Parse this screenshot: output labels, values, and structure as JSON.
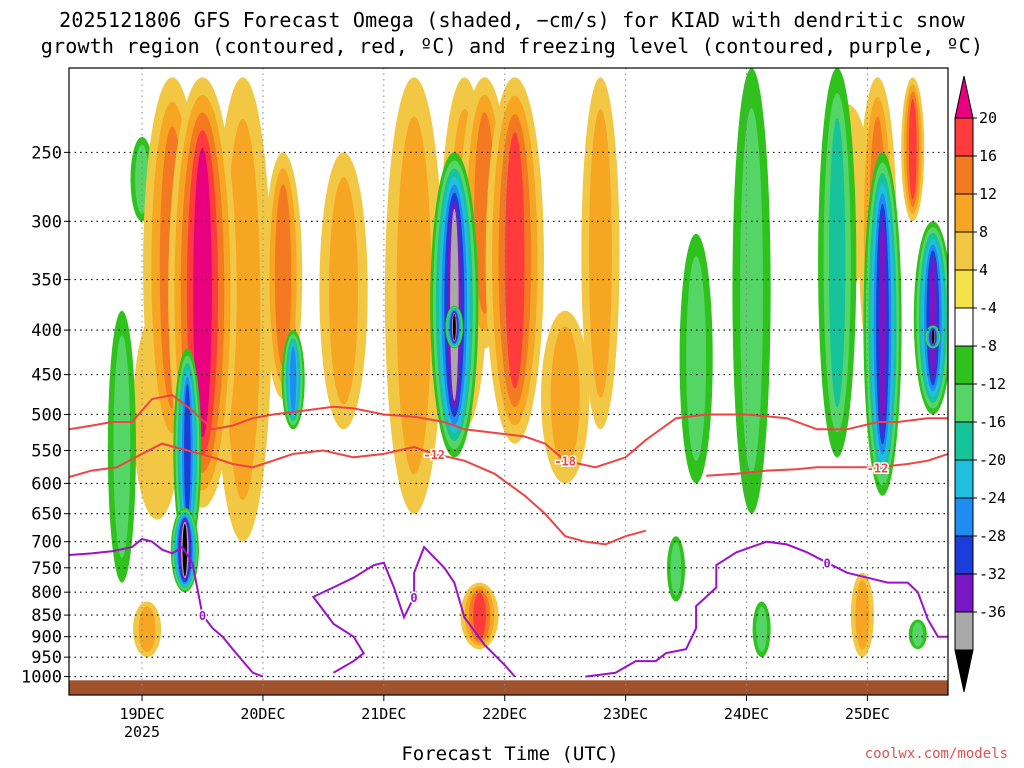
{
  "title": {
    "line1": "2025121806 GFS Forecast Omega (shaded, −cm/s) for KIAD with dendritic snow",
    "line2": "growth region (contoured, red, ºC) and freezing level (contoured, purple, ºC)"
  },
  "attribution": "coolwx.com/models",
  "chart_data": {
    "type": "heatmap",
    "title": "2025121806 GFS Forecast Omega (shaded, −cm/s) for KIAD with dendritic snow growth region (contoured, red, ºC) and freezing level (contoured, purple, ºC)",
    "xlabel": "Forecast Time (UTC)",
    "ylabel": "",
    "x_range_hours": [
      -14.5,
      160
    ],
    "x_ticks": [
      {
        "hour": 0,
        "label": "19DEC",
        "sublabel": "2025"
      },
      {
        "hour": 24,
        "label": "20DEC"
      },
      {
        "hour": 48,
        "label": "21DEC"
      },
      {
        "hour": 72,
        "label": "22DEC"
      },
      {
        "hour": 96,
        "label": "23DEC"
      },
      {
        "hour": 120,
        "label": "24DEC"
      },
      {
        "hour": 144,
        "label": "25DEC"
      }
    ],
    "y_range_hpa": [
      1050,
      200
    ],
    "y_ticks": [
      250,
      300,
      350,
      400,
      450,
      500,
      550,
      600,
      650,
      700,
      750,
      800,
      850,
      900,
      950,
      1000
    ],
    "colorbar": {
      "labels": [
        20,
        16,
        12,
        8,
        4,
        -4,
        -8,
        -12,
        -16,
        -20,
        -24,
        -28,
        -32,
        -36
      ],
      "colors": [
        "#e8007f",
        "#ff3b3b",
        "#f47a22",
        "#f6a623",
        "#f2c744",
        "#f3e24a",
        "#ffffff",
        "#2fc21d",
        "#55d566",
        "#17c39b",
        "#20bfe0",
        "#1e8cf0",
        "#1a3ddb",
        "#7a17c4",
        "#a014d6",
        "#a9a9a9",
        "#000000"
      ]
    },
    "series": [
      {
        "name": "Omega maxima (-cm/s)",
        "cells": [
          {
            "hour": 12,
            "p_top": 205,
            "p_bot": 640,
            "width": 12,
            "value": 22
          },
          {
            "hour": 6,
            "p_top": 205,
            "p_bot": 560,
            "width": 10,
            "value": 12
          },
          {
            "hour": 3,
            "p_top": 380,
            "p_bot": 660,
            "width": 8,
            "value": 6
          },
          {
            "hour": 20,
            "p_top": 205,
            "p_bot": 700,
            "width": 10,
            "value": 8
          },
          {
            "hour": 28,
            "p_top": 250,
            "p_bot": 480,
            "width": 6,
            "value": 12
          },
          {
            "hour": 40,
            "p_top": 250,
            "p_bot": 520,
            "width": 8,
            "value": 10
          },
          {
            "hour": 54,
            "p_top": 205,
            "p_bot": 650,
            "width": 10,
            "value": 9
          },
          {
            "hour": 64,
            "p_top": 205,
            "p_bot": 520,
            "width": 8,
            "value": 11
          },
          {
            "hour": 74,
            "p_top": 205,
            "p_bot": 540,
            "width": 10,
            "value": 18
          },
          {
            "hour": 68,
            "p_top": 205,
            "p_bot": 420,
            "width": 8,
            "value": 14
          },
          {
            "hour": 84,
            "p_top": 380,
            "p_bot": 600,
            "width": 8,
            "value": 10
          },
          {
            "hour": 67,
            "p_top": 780,
            "p_bot": 930,
            "width": 6,
            "value": 16
          },
          {
            "hour": 91,
            "p_top": 205,
            "p_bot": 520,
            "width": 6,
            "value": 8
          },
          {
            "hour": 140,
            "p_top": 220,
            "p_bot": 360,
            "width": 8,
            "value": 6
          },
          {
            "hour": 146,
            "p_top": 205,
            "p_bot": 460,
            "width": 6,
            "value": 12
          },
          {
            "hour": 153,
            "p_top": 205,
            "p_bot": 300,
            "width": 3,
            "value": 18
          },
          {
            "hour": 1,
            "p_top": 820,
            "p_bot": 950,
            "width": 4,
            "value": 8
          },
          {
            "hour": 143,
            "p_top": 760,
            "p_bot": 950,
            "width": 3,
            "value": 10
          }
        ]
      },
      {
        "name": "Omega minima (-cm/s)",
        "cells": [
          {
            "hour": 62,
            "p_top": 250,
            "p_bot": 560,
            "width": 8,
            "value": -34
          },
          {
            "hour": 62,
            "p_top": 375,
            "p_bot": 420,
            "width": 2,
            "value": -40
          },
          {
            "hour": 8.5,
            "p_top": 640,
            "p_bot": 800,
            "width": 4,
            "value": -38
          },
          {
            "hour": 9,
            "p_top": 420,
            "p_bot": 720,
            "width": 4,
            "value": -24
          },
          {
            "hour": 147,
            "p_top": 250,
            "p_bot": 620,
            "width": 6,
            "value": -30
          },
          {
            "hour": 157,
            "p_top": 300,
            "p_bot": 500,
            "width": 6,
            "value": -28
          },
          {
            "hour": 157,
            "p_top": 395,
            "p_bot": 420,
            "width": 1.5,
            "value": -40
          },
          {
            "hour": 138,
            "p_top": 200,
            "p_bot": 560,
            "width": 6,
            "value": -14
          },
          {
            "hour": 121,
            "p_top": 200,
            "p_bot": 650,
            "width": 6,
            "value": -10
          },
          {
            "hour": 110,
            "p_top": 310,
            "p_bot": 600,
            "width": 5,
            "value": -10
          },
          {
            "hour": 30,
            "p_top": 400,
            "p_bot": 520,
            "width": 3,
            "value": -22
          },
          {
            "hour": -4,
            "p_top": 380,
            "p_bot": 780,
            "width": 4,
            "value": -10
          },
          {
            "hour": 0,
            "p_top": 240,
            "p_bot": 300,
            "width": 3,
            "value": -8
          },
          {
            "hour": 123,
            "p_top": 820,
            "p_bot": 950,
            "width": 2,
            "value": -10
          },
          {
            "hour": 154,
            "p_top": 860,
            "p_bot": 930,
            "width": 2,
            "value": -8
          },
          {
            "hour": 106,
            "p_top": 690,
            "p_bot": 820,
            "width": 2,
            "value": -8
          }
        ]
      },
      {
        "name": "Dendritic growth -12C (red)",
        "label": "-12",
        "points": [
          [
            -14.5,
            590
          ],
          [
            -10,
            580
          ],
          [
            -5,
            575
          ],
          [
            0,
            555
          ],
          [
            4,
            540
          ],
          [
            8,
            548
          ],
          [
            14,
            560
          ],
          [
            18,
            570
          ],
          [
            22,
            575
          ],
          [
            26,
            565
          ],
          [
            30,
            555
          ],
          [
            36,
            550
          ],
          [
            42,
            560
          ],
          [
            48,
            555
          ],
          [
            54,
            545
          ],
          [
            58,
            555
          ],
          [
            64,
            565
          ],
          [
            70,
            585
          ],
          [
            76,
            620
          ],
          [
            80,
            650
          ],
          [
            84,
            690
          ],
          [
            88,
            700
          ],
          [
            92,
            705
          ],
          [
            96,
            690
          ],
          [
            100,
            680
          ]
        ]
      },
      {
        "name": "Dendritic growth -18C (red)",
        "label": "-18",
        "points": [
          [
            -14.5,
            520
          ],
          [
            -10,
            515
          ],
          [
            -6,
            510
          ],
          [
            -2,
            510
          ],
          [
            2,
            480
          ],
          [
            6,
            475
          ],
          [
            10,
            495
          ],
          [
            14,
            520
          ],
          [
            18,
            515
          ],
          [
            22,
            505
          ],
          [
            26,
            500
          ],
          [
            32,
            495
          ],
          [
            38,
            490
          ],
          [
            42,
            492
          ],
          [
            48,
            500
          ],
          [
            54,
            503
          ],
          [
            60,
            510
          ],
          [
            64,
            520
          ],
          [
            70,
            525
          ],
          [
            76,
            530
          ],
          [
            80,
            540
          ],
          [
            84,
            565
          ],
          [
            90,
            575
          ],
          [
            96,
            560
          ],
          [
            100,
            535
          ],
          [
            106,
            505
          ],
          [
            112,
            500
          ],
          [
            120,
            500
          ],
          [
            128,
            505
          ],
          [
            134,
            520
          ],
          [
            140,
            520
          ],
          [
            146,
            510
          ],
          [
            150,
            510
          ],
          [
            156,
            505
          ],
          [
            160,
            505
          ]
        ]
      },
      {
        "name": "Dendritic growth -12C right (red)",
        "label": "-12",
        "points": [
          [
            112,
            588
          ],
          [
            118,
            585
          ],
          [
            124,
            580
          ],
          [
            130,
            578
          ],
          [
            134,
            575
          ],
          [
            140,
            575
          ],
          [
            146,
            575
          ],
          [
            152,
            570
          ],
          [
            156,
            565
          ],
          [
            160,
            555
          ]
        ]
      },
      {
        "name": "Freezing level 0C (purple)",
        "label": "0",
        "points": [
          [
            -14.5,
            725
          ],
          [
            -10,
            722
          ],
          [
            -6,
            718
          ],
          [
            -2,
            710
          ],
          [
            0,
            695
          ],
          [
            2,
            700
          ],
          [
            4,
            715
          ],
          [
            6,
            722
          ],
          [
            8,
            710
          ],
          [
            10,
            740
          ],
          [
            12,
            850
          ],
          [
            14,
            880
          ],
          [
            16,
            900
          ],
          [
            18,
            930
          ],
          [
            20,
            960
          ],
          [
            22,
            990
          ],
          [
            24,
            1000
          ]
        ]
      },
      {
        "name": "Freezing level 0C mid (purple)",
        "label": "0",
        "points": [
          [
            38,
            990
          ],
          [
            42,
            960
          ],
          [
            44,
            940
          ],
          [
            42,
            900
          ],
          [
            38,
            870
          ],
          [
            34,
            810
          ],
          [
            38,
            790
          ],
          [
            42,
            770
          ],
          [
            46,
            745
          ],
          [
            48,
            740
          ],
          [
            50,
            790
          ],
          [
            52,
            855
          ],
          [
            54,
            810
          ],
          [
            54,
            760
          ],
          [
            56,
            710
          ],
          [
            60,
            750
          ],
          [
            62,
            780
          ],
          [
            64,
            855
          ],
          [
            68,
            920
          ],
          [
            72,
            970
          ],
          [
            74,
            1000
          ]
        ]
      },
      {
        "name": "Freezing level 0C right (purple)",
        "label": "0",
        "points": [
          [
            88,
            1000
          ],
          [
            94,
            990
          ],
          [
            98,
            960
          ],
          [
            102,
            960
          ],
          [
            104,
            940
          ],
          [
            108,
            930
          ],
          [
            110,
            880
          ],
          [
            110,
            830
          ],
          [
            112,
            810
          ],
          [
            114,
            790
          ],
          [
            114,
            745
          ],
          [
            118,
            720
          ],
          [
            124,
            700
          ],
          [
            128,
            705
          ],
          [
            132,
            720
          ],
          [
            136,
            740
          ],
          [
            140,
            760
          ],
          [
            144,
            770
          ],
          [
            148,
            780
          ],
          [
            150,
            780
          ],
          [
            152,
            780
          ],
          [
            154,
            800
          ],
          [
            156,
            860
          ],
          [
            158,
            900
          ],
          [
            160,
            900
          ]
        ]
      }
    ]
  }
}
